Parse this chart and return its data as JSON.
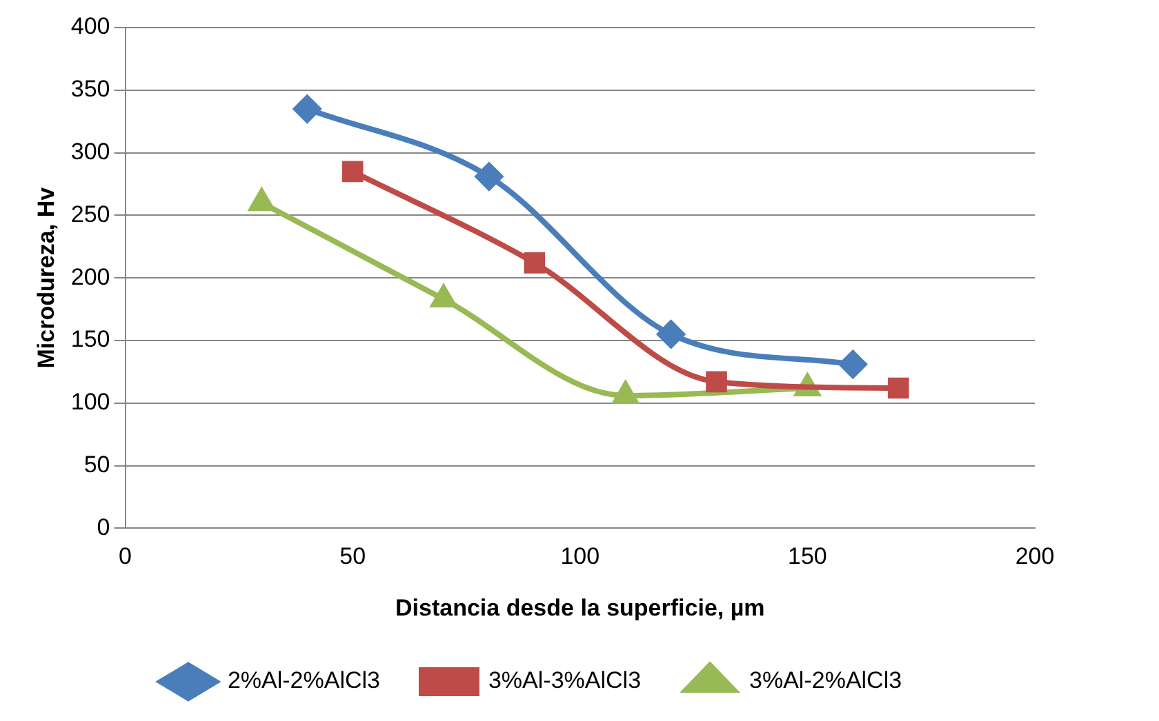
{
  "chart_data": {
    "type": "line",
    "xlabel": "Distancia desde la superficie, µm",
    "ylabel": "Microdureza, Hv",
    "xlim": [
      0,
      200
    ],
    "xticks": [
      0,
      50,
      100,
      150,
      200
    ],
    "ylim": [
      0,
      400
    ],
    "yticks": [
      0,
      50,
      100,
      150,
      200,
      250,
      300,
      350,
      400
    ],
    "grid": "y",
    "legend": "bottom",
    "series": [
      {
        "name": "2%Al-2%AlCl3",
        "color": "#4a7ebb",
        "marker": "diamond",
        "x": [
          40,
          80,
          120,
          160
        ],
        "values": [
          335,
          281,
          155,
          131
        ]
      },
      {
        "name": "3%Al-3%AlCl3",
        "color": "#be4b48",
        "marker": "square",
        "x": [
          50,
          90,
          130,
          170
        ],
        "values": [
          285,
          212,
          117,
          112
        ]
      },
      {
        "name": "3%Al-2%AlCl3",
        "color": "#98b954",
        "marker": "triangle",
        "x": [
          30,
          70,
          110,
          150
        ],
        "values": [
          260,
          183,
          106,
          112
        ]
      }
    ]
  }
}
